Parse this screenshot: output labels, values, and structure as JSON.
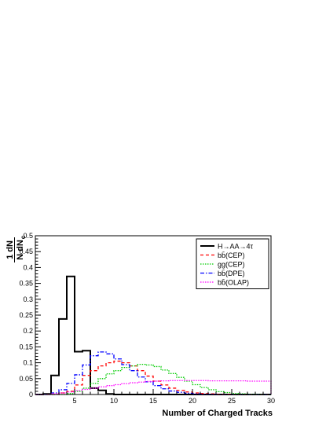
{
  "chart_data": {
    "type": "line",
    "title": "",
    "xlabel": "Number of Charged Tracks",
    "ylabel_top": "1 dN",
    "ylabel_bottom": "N dN",
    "ylabel_subscript": "c",
    "xlim": [
      0,
      30
    ],
    "ylim": [
      0,
      0.5
    ],
    "x_ticks": [
      "5",
      "10",
      "15",
      "20",
      "25",
      "30"
    ],
    "y_ticks": [
      "0",
      "0.05",
      "0.1",
      "0.15",
      "0.2",
      "0.25",
      "0.3",
      "0.35",
      "0.4",
      "0.45",
      "0.5"
    ],
    "grid": false,
    "legend_position": "top-right",
    "bin_edges": [
      0,
      1,
      2,
      3,
      4,
      5,
      6,
      7,
      8,
      9,
      10,
      11,
      12,
      13,
      14,
      15,
      16,
      17,
      18,
      19,
      20,
      21,
      22,
      23,
      24,
      25,
      26,
      27,
      28,
      29,
      30
    ],
    "series": [
      {
        "name": "H→AA→4τ",
        "color": "#000000",
        "style": "solid",
        "values": [
          0,
          0.002,
          0.06,
          0.238,
          0.372,
          0.135,
          0.138,
          0.02,
          0.013,
          0.002,
          0,
          0,
          0,
          0,
          0,
          0,
          0,
          0,
          0,
          0,
          0,
          0,
          0,
          0,
          0,
          0,
          0,
          0,
          0,
          0
        ]
      },
      {
        "name": "bb̄(CEP)",
        "color": "#ff0000",
        "style": "dashed",
        "values": [
          0,
          0,
          0,
          0.005,
          0.01,
          0.03,
          0.06,
          0.075,
          0.09,
          0.1,
          0.105,
          0.1,
          0.09,
          0.075,
          0.058,
          0.042,
          0.03,
          0.02,
          0.013,
          0.008,
          0.005,
          0.003,
          0.002,
          0.001,
          0.001,
          0,
          0,
          0,
          0,
          0
        ]
      },
      {
        "name": "gg(CEP)",
        "color": "#00cc00",
        "style": "dotted",
        "values": [
          0,
          0,
          0,
          0,
          0.003,
          0.01,
          0.02,
          0.035,
          0.05,
          0.065,
          0.075,
          0.085,
          0.09,
          0.095,
          0.093,
          0.088,
          0.077,
          0.066,
          0.054,
          0.042,
          0.031,
          0.022,
          0.015,
          0.009,
          0.006,
          0.003,
          0.002,
          0.001,
          0.001,
          0
        ]
      },
      {
        "name": "bb̄(DPE)",
        "color": "#0000ff",
        "style": "dashdot",
        "values": [
          0,
          0,
          0.005,
          0.015,
          0.035,
          0.062,
          0.093,
          0.122,
          0.134,
          0.128,
          0.112,
          0.094,
          0.075,
          0.055,
          0.04,
          0.028,
          0.018,
          0.011,
          0.007,
          0.004,
          0.002,
          0.001,
          0.001,
          0,
          0,
          0,
          0,
          0,
          0,
          0
        ]
      },
      {
        "name": "bb̄(OLAP)",
        "color": "#ff00ff",
        "style": "dotted",
        "values": [
          0,
          0,
          0.003,
          0.005,
          0.008,
          0.012,
          0.016,
          0.02,
          0.024,
          0.028,
          0.031,
          0.034,
          0.037,
          0.039,
          0.041,
          0.042,
          0.043,
          0.044,
          0.044,
          0.044,
          0.044,
          0.044,
          0.043,
          0.043,
          0.043,
          0.043,
          0.043,
          0.042,
          0.042,
          0.042
        ]
      }
    ]
  }
}
